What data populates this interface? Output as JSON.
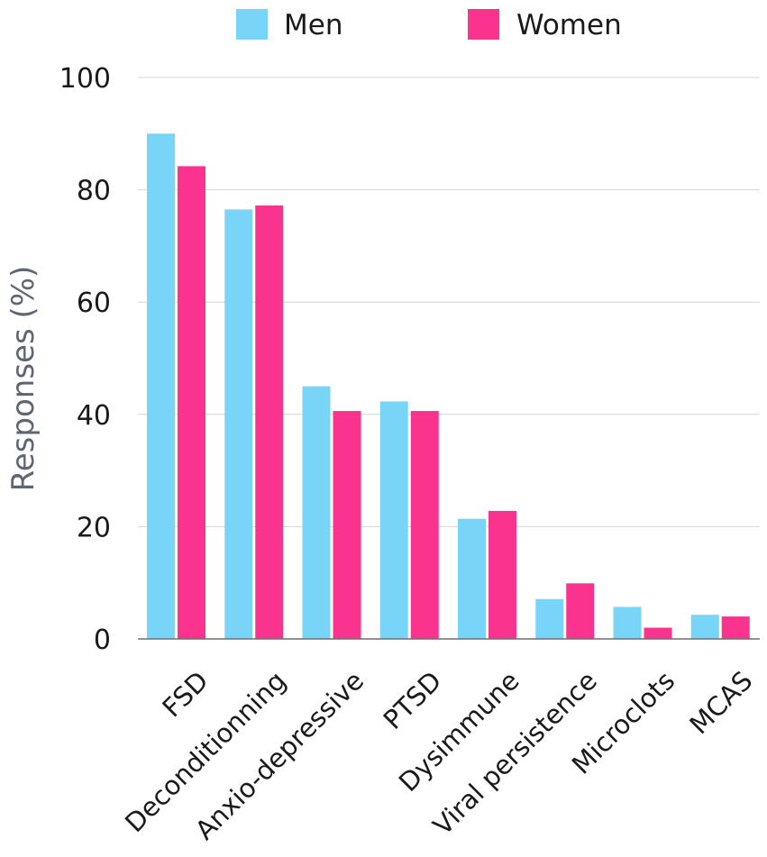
{
  "chart_data": {
    "type": "bar",
    "title": "",
    "xlabel": "",
    "ylabel": "Responses (%)",
    "ylim": [
      0,
      100
    ],
    "yticks": [
      0,
      20,
      40,
      60,
      80,
      100
    ],
    "grid": true,
    "legend_position": "top",
    "categories": [
      "FSD",
      "Deconditionning",
      "Anxio-depressive",
      "PTSD",
      "Dysimmune",
      "Viral persistence",
      "Microclots",
      "MCAS"
    ],
    "series": [
      {
        "name": "Men",
        "color": "#79d5f7",
        "values": [
          90.0,
          76.5,
          45.0,
          42.3,
          21.4,
          7.1,
          5.7,
          4.3
        ]
      },
      {
        "name": "Women",
        "color": "#fa338f",
        "values": [
          84.2,
          77.2,
          40.6,
          40.6,
          22.8,
          9.9,
          2.0,
          4.0
        ]
      }
    ]
  }
}
